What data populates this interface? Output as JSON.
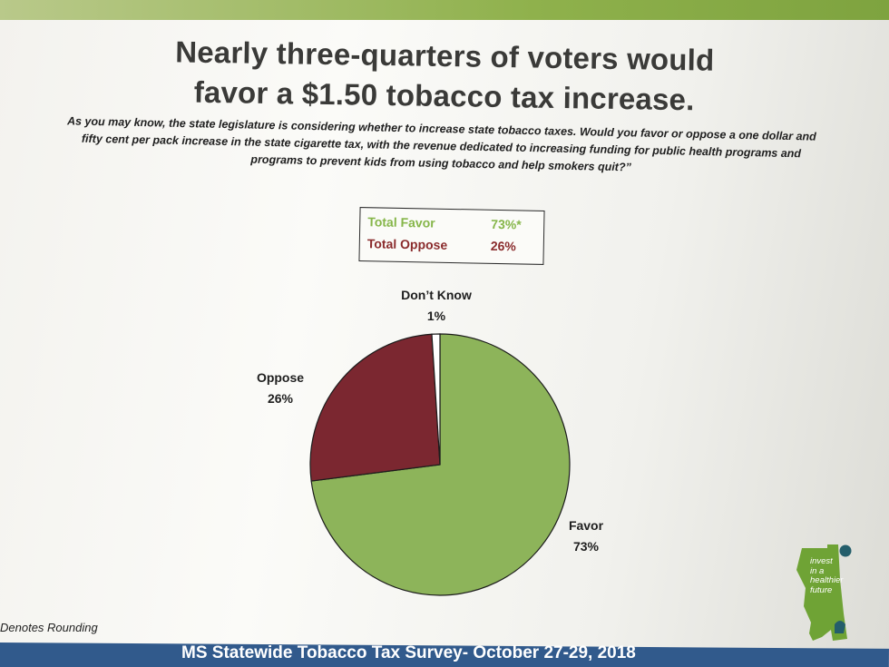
{
  "headline": {
    "line1": "Nearly three-quarters of voters would",
    "line2": "favor a $1.50 tobacco tax increase."
  },
  "question": {
    "line1": "As you may know, the state legislature is considering whether to increase state tobacco taxes. Would you favor or oppose a one dollar and",
    "line2": "fifty cent per pack increase in the state cigarette tax, with the revenue dedicated to increasing funding for public health programs and",
    "line3": "programs to prevent kids from using tobacco and help smokers quit?”"
  },
  "summary": {
    "favor_label": "Total Favor",
    "favor_value": "73%*",
    "oppose_label": "Total Oppose",
    "oppose_value": "26%"
  },
  "footnote": "Denotes Rounding",
  "footer": "MS Statewide Tobacco Tax Survey- October 27-29, 2018",
  "logo": {
    "line1": "invest",
    "line2": "in a",
    "line3": "healthier",
    "line4": "future"
  },
  "colors": {
    "favor": "#8db45a",
    "oppose": "#7b2730",
    "dont_know": "#ffffff",
    "footer_band": "#315a8c",
    "accent_green": "#8fb14c"
  },
  "chart_data": {
    "type": "pie",
    "slices": [
      {
        "label": "Favor",
        "value": 73,
        "value_label": "73%"
      },
      {
        "label": "Oppose",
        "value": 26,
        "value_label": "26%"
      },
      {
        "label": "Don’t Know",
        "value": 1,
        "value_label": "1%"
      }
    ]
  }
}
